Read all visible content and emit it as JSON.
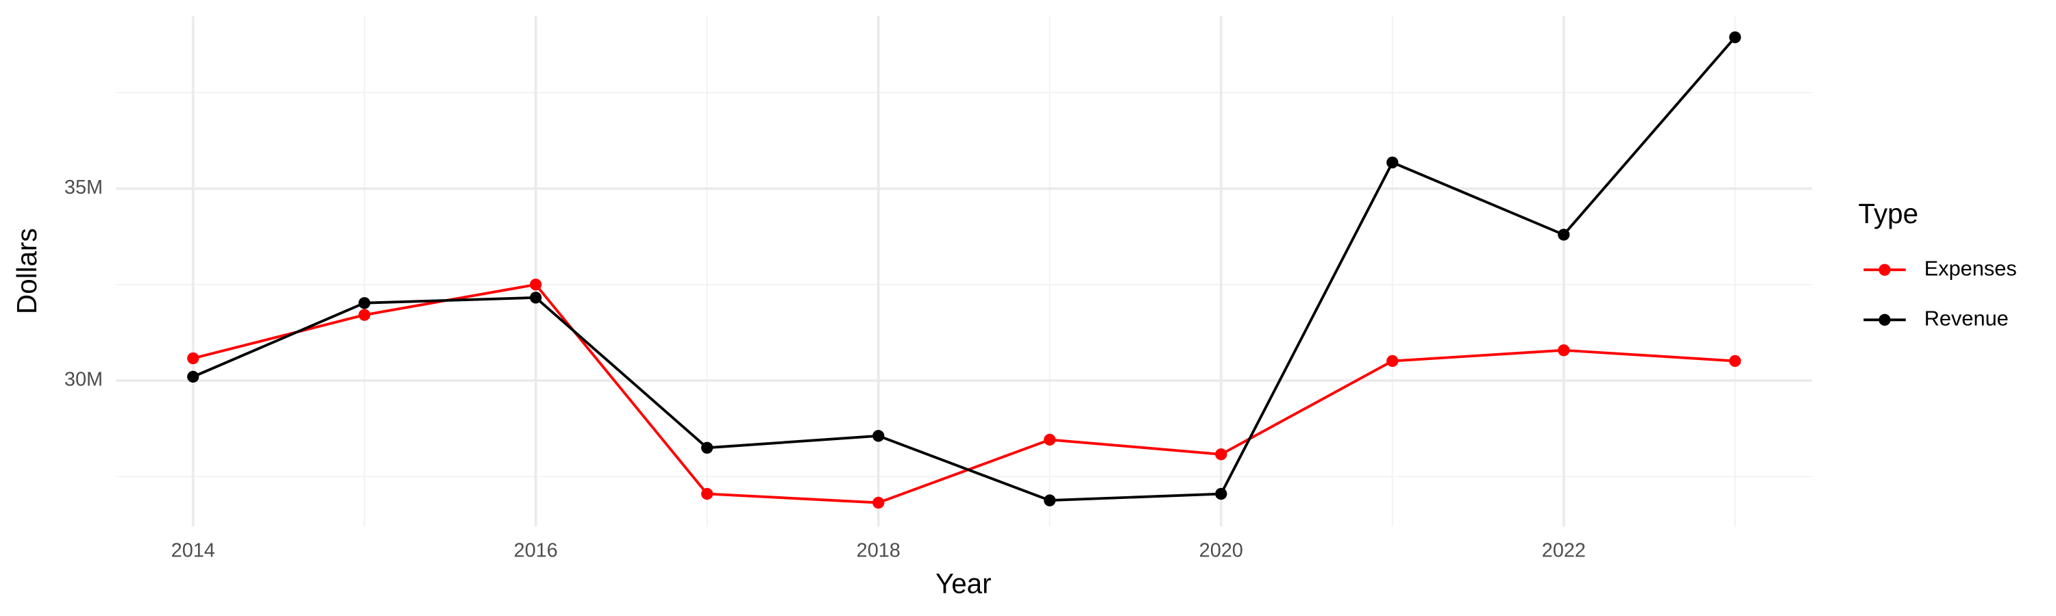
{
  "chart_data": {
    "type": "line",
    "x_label": "Year",
    "y_label": "Dollars",
    "legend_title": "Type",
    "legend": "right",
    "grid": true,
    "x": [
      2014,
      2015,
      2016,
      2017,
      2018,
      2019,
      2020,
      2021,
      2022,
      2023
    ],
    "series": [
      {
        "name": "Expenses",
        "color": "#ff0000",
        "values": [
          30580000,
          31710000,
          32500000,
          27050000,
          26820000,
          28460000,
          28080000,
          30510000,
          30790000,
          30510000
        ]
      },
      {
        "name": "Revenue",
        "color": "#000000",
        "values": [
          30100000,
          32020000,
          32160000,
          28250000,
          28560000,
          26880000,
          27050000,
          35680000,
          33800000,
          38940000
        ]
      }
    ],
    "xlim": [
      2013.55,
      2023.45
    ],
    "xticks": [
      2014,
      2016,
      2018,
      2020,
      2022
    ],
    "xminorticks": [
      2015,
      2017,
      2019,
      2021,
      2023
    ],
    "ylim": [
      26200000,
      39500000
    ],
    "yticks": [
      {
        "value": 30000000,
        "label": "30M"
      },
      {
        "value": 35000000,
        "label": "35M"
      }
    ],
    "yminorticks": [
      27500000,
      32500000,
      37500000
    ]
  }
}
